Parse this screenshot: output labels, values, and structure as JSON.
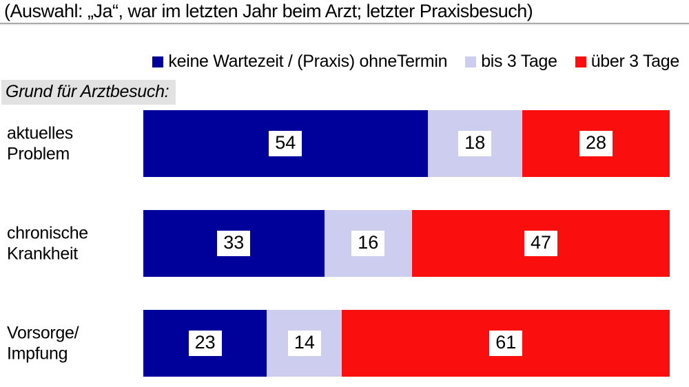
{
  "title": "(Auswahl: „Ja“, war im letzten Jahr beim Arzt; letzter Praxisbesuch)",
  "section_label": "Grund für Arztbesuch:",
  "colors": {
    "no_wait": "#00009A",
    "up_to_3_days": "#CDCDF0",
    "over_3_days": "#FA0E0E",
    "divider": "#A9A9A9",
    "section_label_bg": "#E2E2E2"
  },
  "legend": {
    "items": [
      {
        "label": "keine Wartezeit / (Praxis) ohneTermin",
        "color": "#00009A"
      },
      {
        "label": "bis 3 Tage",
        "color": "#CDCDF0"
      },
      {
        "label": "über 3 Tage",
        "color": "#FA0E0E"
      }
    ]
  },
  "categories_display": [
    {
      "line1": "aktuelles",
      "line2": "Problem"
    },
    {
      "line1": "chronische",
      "line2": "Krankheit"
    },
    {
      "line1": "Vorsorge/",
      "line2": "Impfung"
    }
  ],
  "chart_data": {
    "type": "bar",
    "orientation": "horizontal",
    "stacked": true,
    "normalized_to_full_width": true,
    "title": "(Auswahl: „Ja“, war im letzten Jahr beim Arzt; letzter Praxisbesuch)",
    "categories": [
      "aktuelles Problem",
      "chronische Krankheit",
      "Vorsorge/ Impfung"
    ],
    "series": [
      {
        "name": "keine Wartezeit / (Praxis) ohneTermin",
        "color": "#00009A",
        "values": [
          54,
          33,
          23
        ]
      },
      {
        "name": "bis 3 Tage",
        "color": "#CDCDF0",
        "values": [
          18,
          16,
          14
        ]
      },
      {
        "name": "über 3 Tage",
        "color": "#FA0E0E",
        "values": [
          28,
          47,
          61
        ]
      }
    ],
    "value_labels_shown": true,
    "legend_position": "top",
    "grid": false
  }
}
